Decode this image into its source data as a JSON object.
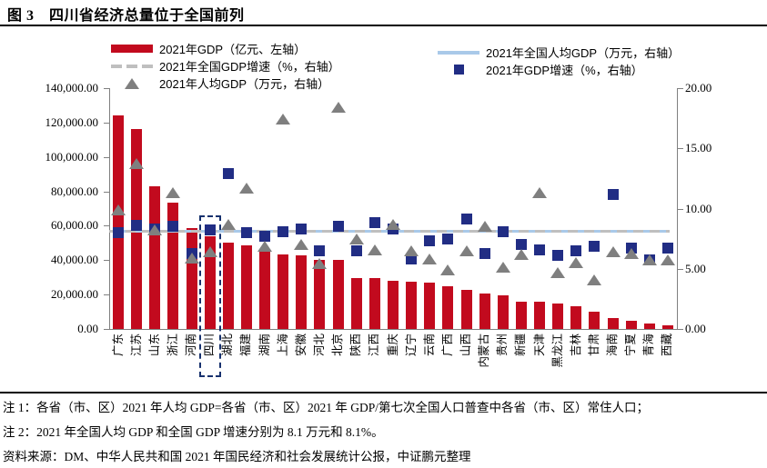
{
  "title": "图 3　四川省经济总量位于全国前列",
  "legend": {
    "gdp_bar": "2021年GDP（亿元、左轴）",
    "national_growth_line": "2021年全国GDP增速（%，右轴）",
    "per_capita_marker": "2021年人均GDP（万元，右轴）",
    "national_per_capita_line": "2021年全国人均GDP（万元，右轴）",
    "growth_marker": "2021年GDP增速（%，右轴）"
  },
  "colors": {
    "bar": "#c20a1e",
    "square": "#212d84",
    "triangle": "#7f7f7f",
    "national_per_capita_line": "#a9c9e9",
    "national_growth_dash": "#bfbfbf",
    "highlight_box": "#17316e",
    "axis": "#808080"
  },
  "chart_data": {
    "type": "bar",
    "categories": [
      "广东",
      "江苏",
      "山东",
      "浙江",
      "河南",
      "四川",
      "湖北",
      "福建",
      "湖南",
      "上海",
      "安徽",
      "河北",
      "北京",
      "陕西",
      "江西",
      "重庆",
      "辽宁",
      "云南",
      "广西",
      "山西",
      "内蒙古",
      "贵州",
      "新疆",
      "天津",
      "黑龙江",
      "吉林",
      "甘肃",
      "海南",
      "宁夏",
      "青海",
      "西藏"
    ],
    "series": [
      {
        "name": "2021年GDP（亿元、左轴）",
        "type": "bar",
        "axis": "left",
        "values": [
          124369.7,
          116364.2,
          83095.9,
          73515.8,
          58887.4,
          53850.8,
          50012.9,
          48810.4,
          46063.1,
          43214.9,
          42959.2,
          40391.3,
          40269.6,
          29801.0,
          29619.7,
          27894.0,
          27584.1,
          27146.8,
          24740.9,
          22590.2,
          20514.2,
          19586.4,
          15983.7,
          15695.1,
          14879.2,
          13235.5,
          10243.3,
          6475.2,
          4522.3,
          3346.6,
          2080.2
        ]
      },
      {
        "name": "2021年GDP增速（%，右轴）",
        "type": "scatter-square",
        "axis": "right",
        "values": [
          8.0,
          8.6,
          8.3,
          8.5,
          6.3,
          8.2,
          12.9,
          8.0,
          7.7,
          8.1,
          8.3,
          6.5,
          8.5,
          6.5,
          8.8,
          8.3,
          5.8,
          7.3,
          7.5,
          9.1,
          6.3,
          8.1,
          7.0,
          6.6,
          6.1,
          6.5,
          6.9,
          11.2,
          6.7,
          5.7,
          6.7
        ]
      },
      {
        "name": "2021年人均GDP（万元，右轴）",
        "type": "scatter-triangle",
        "axis": "right",
        "values": [
          9.9,
          13.7,
          8.2,
          11.3,
          5.9,
          6.4,
          8.7,
          11.7,
          6.9,
          17.4,
          7.0,
          5.4,
          18.4,
          7.5,
          6.6,
          8.7,
          6.5,
          5.8,
          4.9,
          6.5,
          8.5,
          5.1,
          6.2,
          11.3,
          4.7,
          5.5,
          4.1,
          6.4,
          6.3,
          5.7,
          5.7
        ]
      },
      {
        "name": "2021年全国人均GDP（万元，右轴）",
        "type": "line",
        "axis": "right",
        "constant": 8.1
      },
      {
        "name": "2021年全国GDP增速（%，右轴）",
        "type": "dashed-line",
        "axis": "right",
        "constant": 8.1
      }
    ],
    "left_axis": {
      "min": 0,
      "max": 140000,
      "step": 20000,
      "ticks": [
        "140,000.00",
        "120,000.00",
        "100,000.00",
        "80,000.00",
        "60,000.00",
        "40,000.00",
        "20,000.00",
        "0.00"
      ]
    },
    "right_axis": {
      "min": 0,
      "max": 20,
      "step": 5,
      "ticks": [
        "20.00",
        "15.00",
        "10.00",
        "5.00",
        "0.00"
      ]
    },
    "highlighted_category": "四川",
    "grid": false,
    "legend_position": "top"
  },
  "notes": {
    "note1": "注 1：各省（市、区）2021 年人均 GDP=各省（市、区）2021 年 GDP/第七次全国人口普查中各省（市、区）常住人口；",
    "note2": "注 2：2021 年全国人均 GDP 和全国 GDP 增速分别为 8.1 万元和 8.1%。",
    "source": "资料来源：DM、中华人民共和国 2021 年国民经济和社会发展统计公报，中证鹏元整理"
  }
}
